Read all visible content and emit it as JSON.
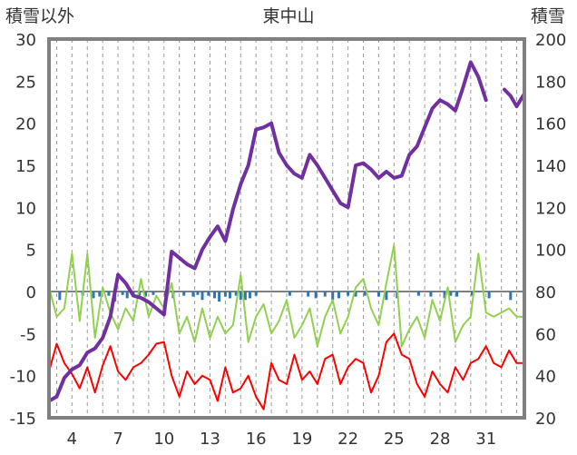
{
  "chart_data": {
    "type": "line",
    "title": "東中山",
    "ylabel_left": "積雪以外",
    "ylabel_right": "積雪",
    "ylim_left": [
      -15,
      30
    ],
    "ylim_right": [
      20,
      200
    ],
    "yticks_left": [
      -15,
      -10,
      -5,
      0,
      5,
      10,
      15,
      20,
      25,
      30
    ],
    "yticks_right": [
      20,
      40,
      60,
      80,
      100,
      120,
      140,
      160,
      180,
      200
    ],
    "xlim": [
      2.5,
      33.5
    ],
    "xticks": [
      4,
      7,
      10,
      13,
      16,
      19,
      22,
      25,
      28,
      31
    ],
    "grid": "vertical-dashed",
    "colors": {
      "snow_depth": "#7030a0",
      "min_temperature": "#ff0000",
      "max_temperature": "#92d050",
      "precipitation": "#2e75b6",
      "zero_line": "#808080",
      "frame": "#808080"
    },
    "series": [
      {
        "axis": "right",
        "x": [
          2.5,
          3.0,
          3.5,
          4.0,
          4.5,
          5.0,
          5.5,
          6.0,
          6.5,
          7.0,
          7.5,
          8.0,
          8.5,
          9.0,
          9.5,
          10.0,
          10.5,
          11.0,
          11.5,
          12.0,
          12.5,
          13.0,
          13.5,
          14.0,
          14.5,
          15.0,
          15.5,
          16.0,
          16.5,
          17.0,
          17.5,
          18.0,
          18.5,
          19.0,
          19.5,
          20.0,
          20.5,
          21.0,
          21.5,
          22.0,
          22.5,
          23.0,
          23.5,
          24.0,
          24.5,
          25.0,
          25.5,
          26.0,
          26.5,
          27.0,
          27.5,
          28.0,
          28.5,
          29.0,
          29.5,
          30.0,
          30.5,
          31.0
        ],
        "values": [
          28,
          30,
          39,
          43,
          45,
          51,
          53,
          58,
          68,
          88,
          84,
          78,
          77,
          75,
          72,
          69,
          99,
          96,
          93,
          91,
          100,
          106,
          111,
          104,
          119,
          131,
          140,
          157,
          158,
          160,
          146,
          140,
          136,
          134,
          145,
          140,
          134,
          128,
          122,
          120,
          140,
          141,
          138,
          134,
          137,
          134,
          135,
          145,
          149,
          158,
          167,
          171,
          169,
          166,
          177,
          189,
          182,
          171
        ],
        "gap_after": 31.0,
        "x2": [
          32.2,
          32.6,
          33.0,
          33.5
        ],
        "values2": [
          176,
          173,
          168,
          174
        ]
      },
      {
        "axis": "left",
        "x": [
          2.5,
          3.0,
          3.5,
          4.0,
          4.5,
          5.0,
          5.5,
          6.0,
          6.5,
          7.0,
          7.5,
          8.0,
          8.5,
          9.0,
          9.5,
          10.0,
          10.5,
          11.0,
          11.5,
          12.0,
          12.5,
          13.0,
          13.5,
          14.0,
          14.5,
          15.0,
          15.5,
          16.0,
          16.5,
          17.0,
          17.5,
          18.0,
          18.5,
          19.0,
          19.5,
          20.0,
          20.5,
          21.0,
          21.5,
          22.0,
          22.5,
          23.0,
          23.5,
          24.0,
          24.5,
          25.0,
          25.5,
          26.0,
          26.5,
          27.0,
          27.5,
          28.0,
          28.5,
          29.0,
          29.5,
          30.0,
          30.5,
          31.0,
          31.5,
          32.0,
          32.5,
          33.0,
          33.5
        ],
        "values": [
          -9.5,
          -6.2,
          -8.5,
          -9.8,
          -11.5,
          -9.0,
          -12.0,
          -8.8,
          -6.5,
          -9.5,
          -10.5,
          -9.0,
          -8.5,
          -7.5,
          -6.2,
          -6.0,
          -10.0,
          -12.5,
          -9.5,
          -11.0,
          -10.0,
          -10.5,
          -13.0,
          -9.0,
          -12.0,
          -11.5,
          -10.0,
          -12.5,
          -14.0,
          -8.5,
          -10.5,
          -11.0,
          -7.5,
          -10.5,
          -9.5,
          -11.0,
          -8.0,
          -7.5,
          -11.0,
          -9.0,
          -8.0,
          -8.5,
          -12.0,
          -10.0,
          -6.0,
          -5.0,
          -7.5,
          -8.0,
          -11.0,
          -12.5,
          -9.5,
          -11.0,
          -12.0,
          -9.0,
          -10.5,
          -8.5,
          -8.0,
          -6.5,
          -8.5,
          -9.0,
          -7.0,
          -8.5,
          -8.5
        ]
      },
      {
        "axis": "left",
        "x": [
          2.5,
          3.0,
          3.5,
          4.0,
          4.5,
          5.0,
          5.5,
          6.0,
          6.5,
          7.0,
          7.5,
          8.0,
          8.5,
          9.0,
          9.5,
          10.0,
          10.5,
          11.0,
          11.5,
          12.0,
          12.5,
          13.0,
          13.5,
          14.0,
          14.5,
          15.0,
          15.5,
          16.0,
          16.5,
          17.0,
          17.5,
          18.0,
          18.5,
          19.0,
          19.5,
          20.0,
          20.5,
          21.0,
          21.5,
          22.0,
          22.5,
          23.0,
          23.5,
          24.0,
          24.5,
          25.0,
          25.5,
          26.0,
          26.5,
          27.0,
          27.5,
          28.0,
          28.5,
          29.0,
          29.5,
          30.0,
          30.5,
          31.0,
          31.5,
          32.0,
          32.5,
          33.0,
          33.5
        ],
        "values": [
          0.5,
          -3.0,
          -2.0,
          4.5,
          -3.5,
          4.5,
          -5.5,
          0.5,
          -2.5,
          -4.5,
          -2.0,
          -3.5,
          1.5,
          -3.0,
          -0.5,
          -2.0,
          1.0,
          -5.0,
          -3.0,
          -6.0,
          -2.0,
          -5.5,
          -3.0,
          -5.0,
          -4.0,
          2.0,
          -6.0,
          -3.0,
          -1.5,
          -5.0,
          -3.5,
          -1.0,
          -5.5,
          -4.0,
          -2.0,
          -6.5,
          -3.0,
          -1.0,
          -5.0,
          -3.0,
          0.5,
          1.5,
          -2.0,
          -4.0,
          1.0,
          5.5,
          -6.5,
          -4.5,
          -3.0,
          -5.5,
          -1.0,
          -3.5,
          0.5,
          -6.0,
          -4.0,
          -3.0,
          4.5,
          -2.5,
          -3.0,
          -2.5,
          -2.0,
          -3.0,
          -3.0
        ]
      },
      {
        "axis": "left",
        "type": "bar",
        "x": [
          3.2,
          4.7,
          5.4,
          5.8,
          6.4,
          6.8,
          7.3,
          7.6,
          8.0,
          8.4,
          8.8,
          9.3,
          10.1,
          10.6,
          11.3,
          11.9,
          12.2,
          12.5,
          12.9,
          13.3,
          13.6,
          14.0,
          14.3,
          14.7,
          15.0,
          15.3,
          15.6,
          16.0,
          18.2,
          19.4,
          19.9,
          20.5,
          21.0,
          21.4,
          22.0,
          22.5,
          23.1,
          24.0,
          24.5,
          25.2,
          26.6,
          27.4,
          28.3,
          28.7,
          29.1,
          30.1,
          31.2,
          32.6
        ],
        "values": [
          -1.0,
          -0.5,
          -0.8,
          -0.6,
          -0.5,
          -1.2,
          -0.4,
          -0.8,
          -0.5,
          -0.5,
          -0.6,
          -0.4,
          -0.5,
          -0.8,
          -0.5,
          -0.6,
          -0.4,
          -1.0,
          -0.5,
          -0.8,
          -1.2,
          -0.6,
          -0.8,
          -0.5,
          -1.0,
          -1.0,
          -0.8,
          -0.5,
          -0.5,
          -0.6,
          -0.8,
          -0.6,
          -1.0,
          -0.8,
          -0.5,
          -0.6,
          -0.5,
          -0.6,
          -1.0,
          -0.8,
          -0.5,
          -0.6,
          -0.8,
          -0.5,
          -0.6,
          -0.5,
          -0.8,
          -1.0
        ]
      }
    ]
  }
}
